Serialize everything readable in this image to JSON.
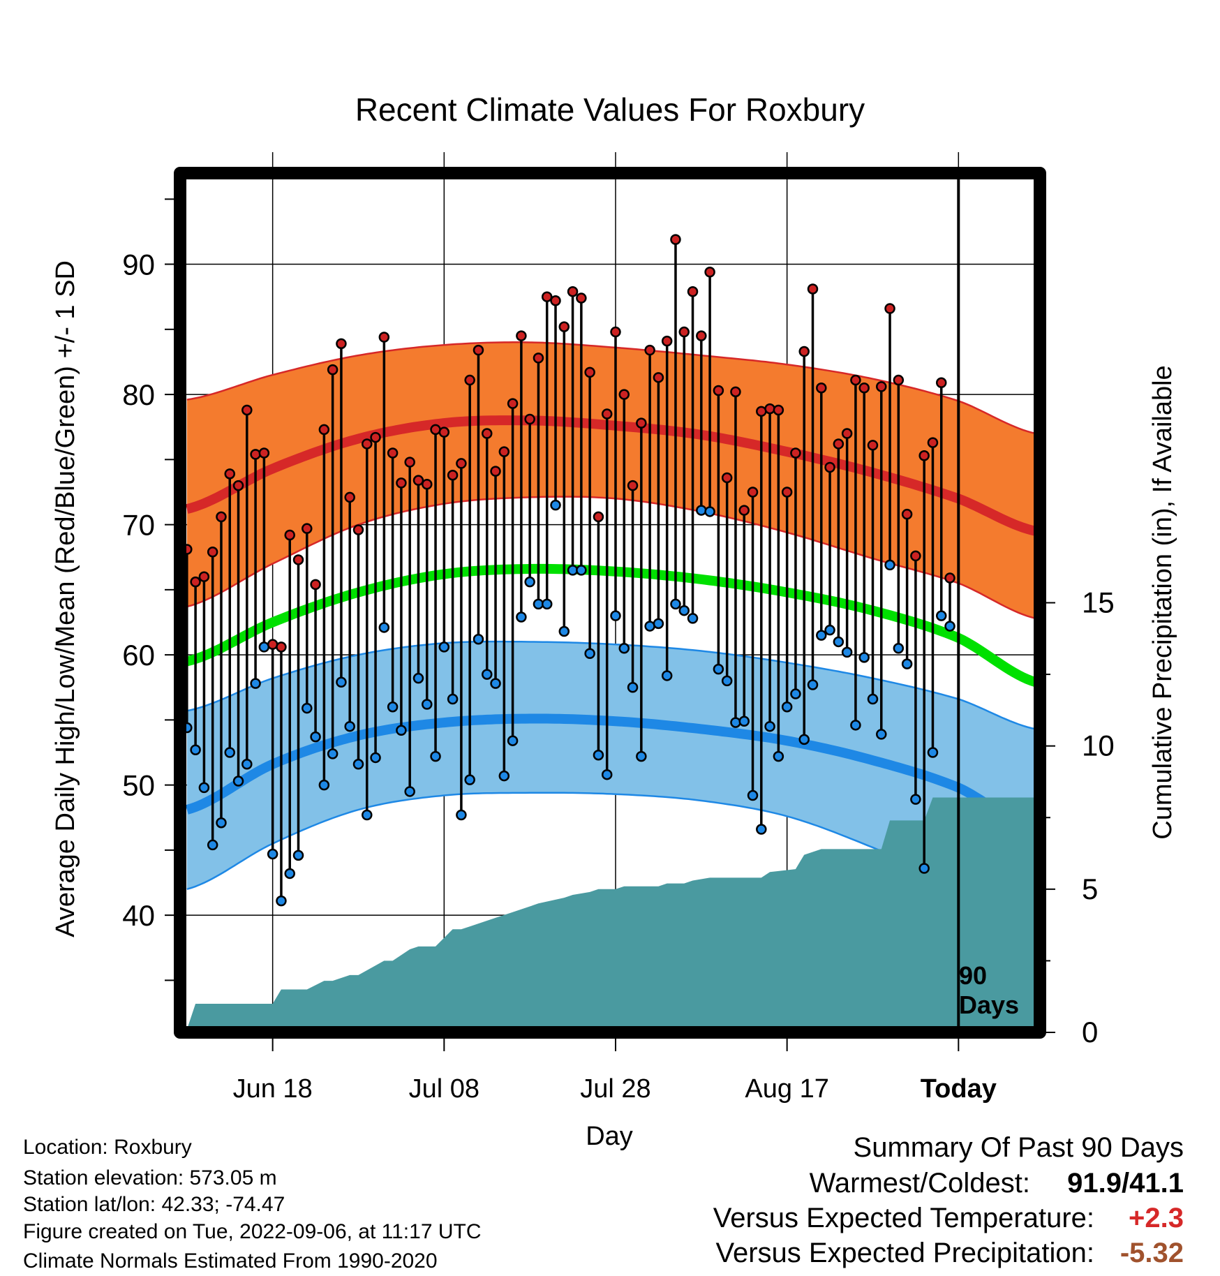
{
  "chart_data": {
    "type": "line",
    "title": "Recent Climate Values For Roxbury",
    "xlabel": "Day",
    "ylabel": "Average Daily High/Low/Mean (Red/Blue/Green) +/- 1 SD",
    "y2label": "Cumulative Precipitation (in), If Available",
    "x_tick_labels": [
      "Jun 18",
      "Jul 08",
      "Jul 28",
      "Aug 17",
      "Today"
    ],
    "x_tick_days": [
      10,
      30,
      50,
      70,
      90
    ],
    "y_ticks": [
      40,
      50,
      60,
      70,
      80,
      90
    ],
    "y_ticks_label": [
      "40",
      "50",
      "60",
      "70",
      "80",
      "90"
    ],
    "ylim": [
      31,
      97
    ],
    "y2_ticks": [
      0,
      5,
      10,
      15
    ],
    "y2_ticks_label": [
      "0",
      "5",
      "10",
      "15"
    ],
    "y2lim": [
      0,
      30
    ],
    "xlim": [
      -0.8,
      99.5
    ],
    "today_label": "90 Days",
    "today_label_lines": [
      "90",
      "Days"
    ],
    "grid": true,
    "normals": {
      "days": [
        0,
        10,
        20,
        30,
        40,
        50,
        60,
        70,
        80,
        90,
        99
      ],
      "high_mean": [
        71.2,
        74.3,
        76.6,
        77.8,
        78.0,
        77.6,
        76.9,
        75.6,
        74.0,
        72.0,
        69.5
      ],
      "high_upper": [
        79.6,
        81.5,
        83.0,
        83.8,
        84.0,
        83.6,
        83.0,
        82.3,
        81.2,
        79.5,
        77.0
      ],
      "high_lower": [
        63.7,
        67.0,
        70.0,
        71.6,
        72.1,
        72.0,
        71.0,
        69.4,
        67.4,
        65.5,
        62.8
      ],
      "mean": [
        59.5,
        62.5,
        64.8,
        66.2,
        66.6,
        66.4,
        65.8,
        64.8,
        63.4,
        61.3,
        57.9
      ],
      "low_mean": [
        48.1,
        51.6,
        53.8,
        54.8,
        55.1,
        54.9,
        54.3,
        53.4,
        51.9,
        49.8,
        46.5
      ],
      "low_upper": [
        55.7,
        58.2,
        60.0,
        60.9,
        61.0,
        60.8,
        60.3,
        59.4,
        58.2,
        56.6,
        54.3
      ],
      "low_lower": [
        42.0,
        45.5,
        48.1,
        49.2,
        49.4,
        49.3,
        48.8,
        47.6,
        45.2,
        42.3,
        38.0
      ]
    },
    "series": [
      {
        "name": "High",
        "color": "#cc2222",
        "values": [
          68.1,
          65.6,
          66.0,
          67.9,
          70.6,
          73.9,
          73.0,
          78.8,
          75.4,
          75.5,
          60.8,
          60.6,
          69.2,
          67.3,
          69.7,
          65.4,
          77.3,
          81.9,
          83.9,
          72.1,
          69.6,
          76.2,
          76.7,
          84.4,
          75.5,
          73.2,
          74.8,
          73.4,
          73.1,
          77.3,
          77.1,
          73.8,
          74.7,
          81.1,
          83.4,
          77.0,
          74.1,
          75.6,
          79.3,
          84.5,
          78.1,
          82.8,
          87.5,
          87.2,
          85.2,
          87.9,
          87.4,
          81.7,
          70.6,
          78.5,
          84.8,
          80.0,
          73.0,
          77.8,
          83.4,
          81.3,
          84.1,
          91.9,
          84.8,
          87.9,
          84.5,
          89.4,
          80.3,
          73.6,
          80.2,
          71.1,
          72.5,
          78.7,
          78.9,
          78.8,
          72.5,
          75.5,
          83.3,
          88.1,
          80.5,
          74.4,
          76.2,
          77.0,
          81.1,
          80.5,
          76.1,
          80.6,
          86.6,
          81.1,
          70.8,
          67.6,
          75.3,
          76.3,
          80.9,
          65.9
        ]
      },
      {
        "name": "Low",
        "color": "#1e88e5",
        "values": [
          54.4,
          52.7,
          49.8,
          45.4,
          47.1,
          52.5,
          50.3,
          51.6,
          57.8,
          60.6,
          44.7,
          41.1,
          43.2,
          44.6,
          55.9,
          53.7,
          50.0,
          52.4,
          57.9,
          54.5,
          51.6,
          47.7,
          52.1,
          62.1,
          56.0,
          54.2,
          49.5,
          58.2,
          56.2,
          52.2,
          60.6,
          56.6,
          47.7,
          50.4,
          61.2,
          58.5,
          57.8,
          50.7,
          53.4,
          62.9,
          65.6,
          63.9,
          63.9,
          71.5,
          61.8,
          66.5,
          66.5,
          60.1,
          52.3,
          50.8,
          63.0,
          60.5,
          57.5,
          52.2,
          62.2,
          62.4,
          58.4,
          63.9,
          63.4,
          62.8,
          71.1,
          71.0,
          58.9,
          58.0,
          54.8,
          54.9,
          49.2,
          46.6,
          54.5,
          52.2,
          56.0,
          57.0,
          53.5,
          57.7,
          61.5,
          61.9,
          61.0,
          60.2,
          54.6,
          59.8,
          56.6,
          53.9,
          66.9,
          60.5,
          59.3,
          48.9,
          43.6,
          52.5,
          63.0,
          62.2
        ]
      }
    ],
    "precipitation": {
      "x": [
        0,
        1,
        10,
        11,
        14,
        16,
        17,
        19,
        20,
        23,
        24,
        26,
        27,
        28,
        29,
        31,
        32,
        33,
        35,
        36,
        38,
        40,
        41,
        44,
        45,
        47,
        48,
        50,
        51,
        55,
        56,
        58,
        59,
        61,
        62,
        67,
        68,
        71,
        72,
        74,
        75,
        76,
        81,
        82,
        83,
        86,
        87,
        89,
        95
      ],
      "y": [
        0.1,
        1.0,
        1.0,
        1.5,
        1.5,
        1.8,
        1.8,
        2.0,
        2.0,
        2.5,
        2.5,
        2.9,
        3.0,
        3.0,
        3.0,
        3.6,
        3.6,
        3.7,
        3.9,
        4.0,
        4.2,
        4.4,
        4.5,
        4.7,
        4.8,
        4.9,
        5.0,
        5.0,
        5.1,
        5.1,
        5.2,
        5.2,
        5.3,
        5.4,
        5.4,
        5.4,
        5.6,
        5.7,
        6.2,
        6.4,
        6.4,
        6.4,
        6.4,
        7.4,
        7.4,
        7.4,
        8.2,
        8.2,
        8.2
      ]
    }
  },
  "info": {
    "location": "Location: Roxbury",
    "elevation": "Station elevation: 573.05 m",
    "latlon": "Station lat/lon: 42.33; -74.47",
    "created": "Figure created on Tue, 2022-09-06, at 11:17 UTC",
    "normals_source": "Climate Normals Estimated From 1990-2020"
  },
  "summary": {
    "heading": "Summary Of Past 90 Days",
    "warmest_coldest_label": "Warmest/Coldest:",
    "warmest_coldest_value": "91.9/41.1",
    "temp_label": "Versus Expected Temperature:",
    "temp_value": "+2.3",
    "temp_color": "#d62828",
    "precip_label": "Versus Expected Precipitation:",
    "precip_value": "-5.32",
    "precip_color": "#a0522d"
  }
}
